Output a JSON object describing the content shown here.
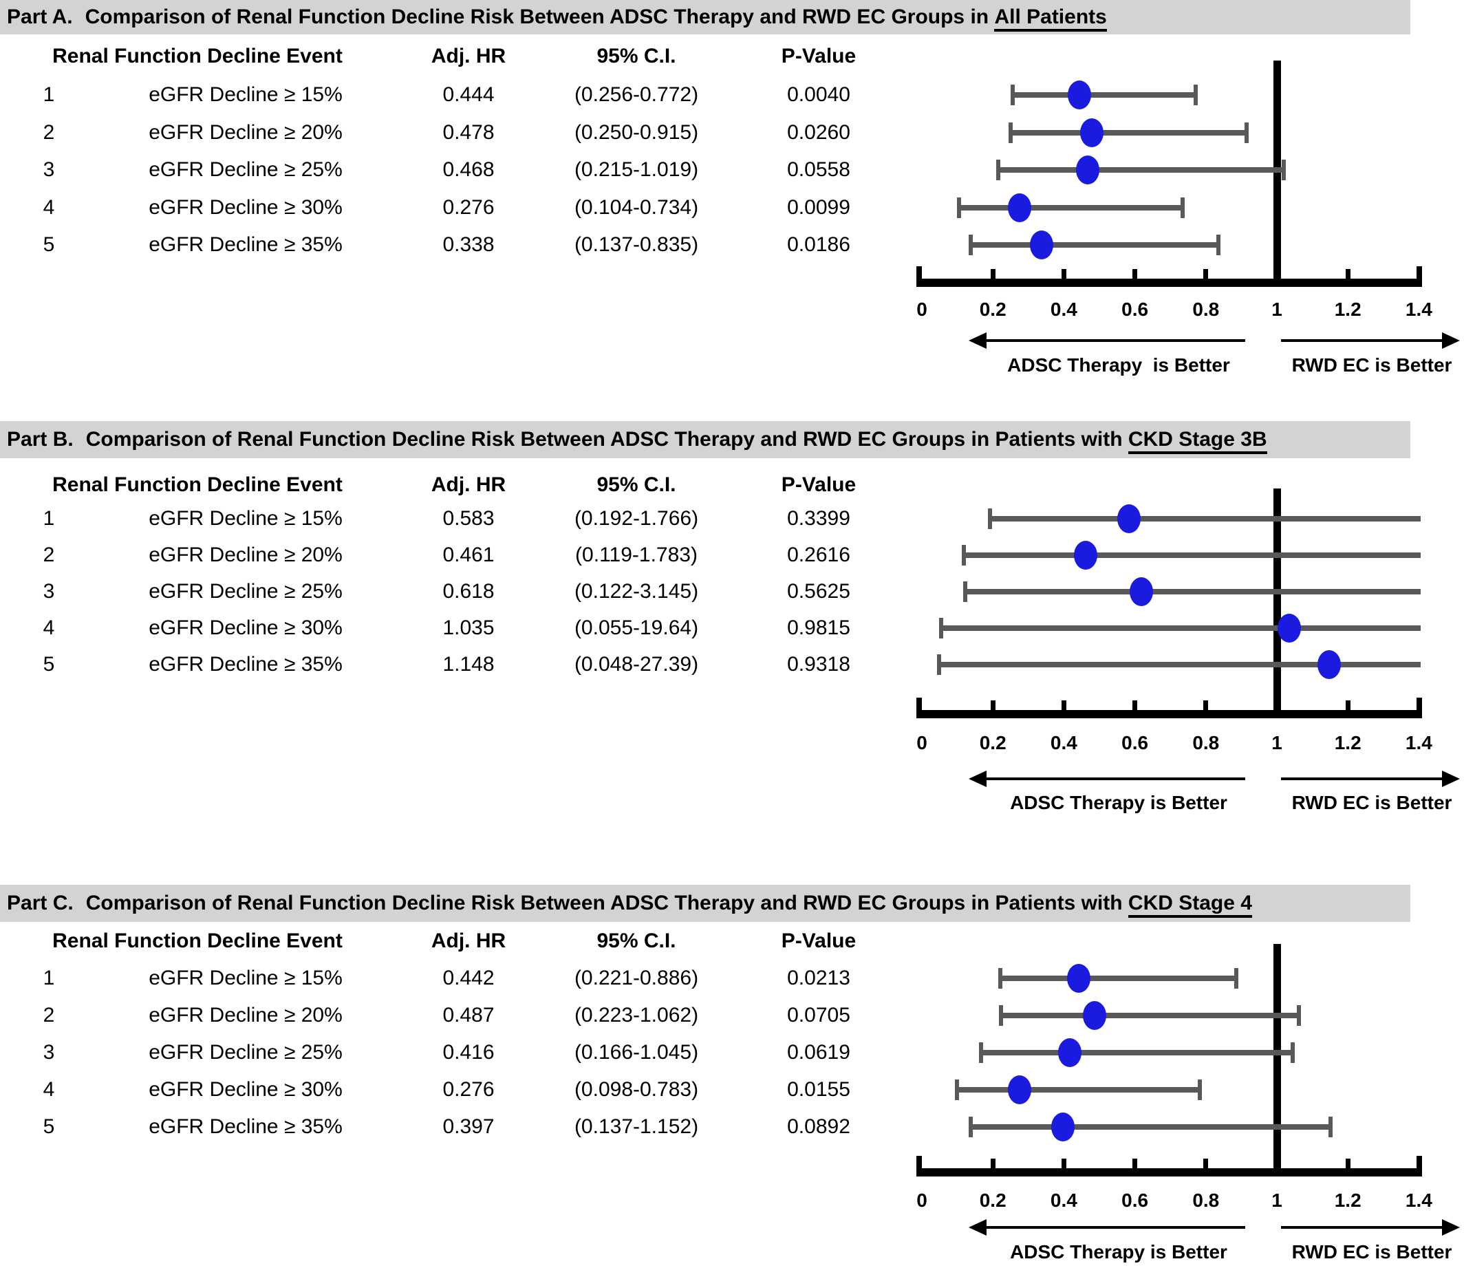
{
  "style": {
    "page_bg": "#ffffff",
    "title_band_bg": "#d3d3d3",
    "text_color": "#000000",
    "dot_color": "#1b1be0",
    "ci_color": "#595959",
    "axis_color": "#000000"
  },
  "columns": {
    "event": "Renal Function Decline Event",
    "hr": "Adj. HR",
    "ci": "95% C.I.",
    "p": "P-Value"
  },
  "chart_data": [
    {
      "type": "forest",
      "part_label": "Part A.",
      "title": "Comparison of Renal Function Decline Risk Between ADSC Therapy and RWD EC Groups in ",
      "title_emphasis": "All Patients",
      "xlim": [
        0,
        1.45
      ],
      "refline": 1,
      "tick_values": [
        0,
        0.2,
        0.4,
        0.6,
        0.8,
        1,
        1.2,
        1.4
      ],
      "tick_labels": [
        "0",
        "0.2",
        "0.4",
        "0.6",
        "0.8",
        "1",
        "1.2",
        "1.4"
      ],
      "left_arrow_label": "ADSC Therapy  is Better",
      "right_arrow_label": "RWD EC is Better",
      "rows": [
        {
          "num": "1",
          "event": "eGFR Decline ≥ 15%",
          "hr": 0.444,
          "hr_text": "0.444",
          "ci_low": 0.256,
          "ci_high": 0.772,
          "ci_text": "(0.256-0.772)",
          "p_text": "0.0040"
        },
        {
          "num": "2",
          "event": "eGFR Decline ≥ 20%",
          "hr": 0.478,
          "hr_text": "0.478",
          "ci_low": 0.25,
          "ci_high": 0.915,
          "ci_text": "(0.250-0.915)",
          "p_text": "0.0260"
        },
        {
          "num": "3",
          "event": "eGFR Decline ≥ 25%",
          "hr": 0.468,
          "hr_text": "0.468",
          "ci_low": 0.215,
          "ci_high": 1.019,
          "ci_text": "(0.215-1.019)",
          "p_text": "0.0558"
        },
        {
          "num": "4",
          "event": "eGFR Decline ≥ 30%",
          "hr": 0.276,
          "hr_text": "0.276",
          "ci_low": 0.104,
          "ci_high": 0.734,
          "ci_text": "(0.104-0.734)",
          "p_text": "0.0099"
        },
        {
          "num": "5",
          "event": "eGFR Decline ≥ 35%",
          "hr": 0.338,
          "hr_text": "0.338",
          "ci_low": 0.137,
          "ci_high": 0.835,
          "ci_text": "(0.137-0.835)",
          "p_text": "0.0186"
        }
      ]
    },
    {
      "type": "forest",
      "part_label": "Part B.",
      "title": "Comparison of Renal Function Decline Risk Between ADSC Therapy and RWD EC Groups in Patients with ",
      "title_emphasis": "CKD Stage 3B",
      "xlim": [
        0,
        1.45
      ],
      "refline": 1,
      "tick_values": [
        0,
        0.2,
        0.4,
        0.6,
        0.8,
        1,
        1.2,
        1.4
      ],
      "tick_labels": [
        "0",
        "0.2",
        "0.4",
        "0.6",
        "0.8",
        "1",
        "1.2",
        "1.4"
      ],
      "left_arrow_label": "ADSC Therapy is Better",
      "right_arrow_label": "RWD EC is Better",
      "rows": [
        {
          "num": "1",
          "event": "eGFR Decline ≥ 15%",
          "hr": 0.583,
          "hr_text": "0.583",
          "ci_low": 0.192,
          "ci_high": 1.766,
          "ci_text": "(0.192-1.766)",
          "p_text": "0.3399"
        },
        {
          "num": "2",
          "event": "eGFR Decline ≥ 20%",
          "hr": 0.461,
          "hr_text": "0.461",
          "ci_low": 0.119,
          "ci_high": 1.783,
          "ci_text": "(0.119-1.783)",
          "p_text": "0.2616"
        },
        {
          "num": "3",
          "event": "eGFR Decline ≥ 25%",
          "hr": 0.618,
          "hr_text": "0.618",
          "ci_low": 0.122,
          "ci_high": 3.145,
          "ci_text": "(0.122-3.145)",
          "p_text": "0.5625"
        },
        {
          "num": "4",
          "event": "eGFR Decline ≥ 30%",
          "hr": 1.035,
          "hr_text": "1.035",
          "ci_low": 0.055,
          "ci_high": 19.64,
          "ci_text": "(0.055-19.64)",
          "p_text": "0.9815"
        },
        {
          "num": "5",
          "event": "eGFR Decline ≥ 35%",
          "hr": 1.148,
          "hr_text": "1.148",
          "ci_low": 0.048,
          "ci_high": 27.39,
          "ci_text": "(0.048-27.39)",
          "p_text": "0.9318"
        }
      ]
    },
    {
      "type": "forest",
      "part_label": "Part C.",
      "title": "Comparison of Renal Function Decline Risk Between ADSC Therapy and RWD EC Groups in Patients with ",
      "title_emphasis": "CKD Stage 4",
      "xlim": [
        0,
        1.45
      ],
      "refline": 1,
      "tick_values": [
        0,
        0.2,
        0.4,
        0.6,
        0.8,
        1,
        1.2,
        1.4
      ],
      "tick_labels": [
        "0",
        "0.2",
        "0.4",
        "0.6",
        "0.8",
        "1",
        "1.2",
        "1.4"
      ],
      "left_arrow_label": "ADSC Therapy is Better",
      "right_arrow_label": "RWD EC is Better",
      "rows": [
        {
          "num": "1",
          "event": "eGFR Decline ≥ 15%",
          "hr": 0.442,
          "hr_text": "0.442",
          "ci_low": 0.221,
          "ci_high": 0.886,
          "ci_text": "(0.221-0.886)",
          "p_text": "0.0213"
        },
        {
          "num": "2",
          "event": "eGFR Decline ≥ 20%",
          "hr": 0.487,
          "hr_text": "0.487",
          "ci_low": 0.223,
          "ci_high": 1.062,
          "ci_text": "(0.223-1.062)",
          "p_text": "0.0705"
        },
        {
          "num": "3",
          "event": "eGFR Decline ≥ 25%",
          "hr": 0.416,
          "hr_text": "0.416",
          "ci_low": 0.166,
          "ci_high": 1.045,
          "ci_text": "(0.166-1.045)",
          "p_text": "0.0619"
        },
        {
          "num": "4",
          "event": "eGFR Decline ≥ 30%",
          "hr": 0.276,
          "hr_text": "0.276",
          "ci_low": 0.098,
          "ci_high": 0.783,
          "ci_text": "(0.098-0.783)",
          "p_text": "0.0155"
        },
        {
          "num": "5",
          "event": "eGFR Decline ≥ 35%",
          "hr": 0.397,
          "hr_text": "0.397",
          "ci_low": 0.137,
          "ci_high": 1.152,
          "ci_text": "(0.137-1.152)",
          "p_text": "0.0892"
        }
      ]
    }
  ]
}
